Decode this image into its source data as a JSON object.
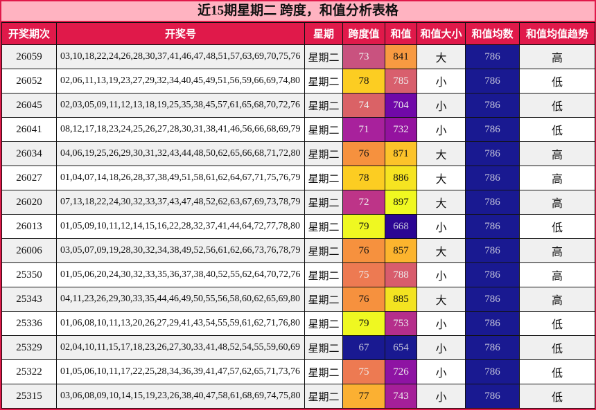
{
  "title": "近15期星期二 跨度，和值分析表格",
  "colors": {
    "frame_border": "#e0194a",
    "title_bg": "#ffb3c1",
    "title_fg": "#111111",
    "header_bg": "#e0194a",
    "header_fg": "#ffffff",
    "row_odd_bg": "#f0f0f0",
    "row_even_bg": "#ffffff",
    "avg_bg": "#191991",
    "avg_fg": "#c6c6dc",
    "cell_border": "#111111"
  },
  "table": {
    "headers": [
      "开奖期次",
      "开奖号",
      "星期",
      "跨度值",
      "和值",
      "和值大小",
      "和值均数",
      "和值均值趋势"
    ],
    "header_keys": [
      "period",
      "numbers",
      "weekday",
      "span",
      "sum",
      "size",
      "avg",
      "trend"
    ],
    "avg_bg": "#191991",
    "avg_fg": "#c6c6dc",
    "rows": [
      {
        "period": "26059",
        "numbers": "03,10,18,22,24,26,28,30,37,41,46,47,48,51,57,63,69,70,75,76",
        "weekday": "星期二",
        "span": "73",
        "span_bg": "#c9527f",
        "span_fg": "#eeeeee",
        "sum": "841",
        "sum_bg": "#f89a41",
        "sum_fg": "#111111",
        "size": "大",
        "avg": "786",
        "trend": "高"
      },
      {
        "period": "26052",
        "numbers": "02,06,11,13,19,23,27,29,32,34,40,45,49,51,56,59,66,69,74,80",
        "weekday": "星期二",
        "span": "78",
        "span_bg": "#fccd22",
        "span_fg": "#111111",
        "sum": "785",
        "sum_bg": "#d85f6d",
        "sum_fg": "#eeeeee",
        "size": "小",
        "avg": "786",
        "trend": "低"
      },
      {
        "period": "26045",
        "numbers": "02,03,05,09,11,12,13,18,19,25,35,38,45,57,61,65,68,70,72,76",
        "weekday": "星期二",
        "span": "74",
        "span_bg": "#da6266",
        "span_fg": "#eeeeee",
        "sum": "704",
        "sum_bg": "#7008a8",
        "sum_fg": "#eeeeee",
        "size": "小",
        "avg": "786",
        "trend": "低"
      },
      {
        "period": "26041",
        "numbers": "08,12,17,18,23,24,25,26,27,28,30,31,38,41,46,56,66,68,69,79",
        "weekday": "星期二",
        "span": "71",
        "span_bg": "#a8219c",
        "span_fg": "#eeeeee",
        "sum": "732",
        "sum_bg": "#94129f",
        "sum_fg": "#eeeeee",
        "size": "小",
        "avg": "786",
        "trend": "低"
      },
      {
        "period": "26034",
        "numbers": "04,06,19,25,26,29,30,31,32,43,44,48,50,62,65,66,68,71,72,80",
        "weekday": "星期二",
        "span": "76",
        "span_bg": "#f6913e",
        "span_fg": "#111111",
        "sum": "871",
        "sum_bg": "#fcc32a",
        "sum_fg": "#111111",
        "size": "大",
        "avg": "786",
        "trend": "高"
      },
      {
        "period": "26027",
        "numbers": "01,04,07,14,18,26,28,37,38,49,51,58,61,62,64,67,71,75,76,79",
        "weekday": "星期二",
        "span": "78",
        "span_bg": "#fccd22",
        "span_fg": "#111111",
        "sum": "886",
        "sum_bg": "#f6e421",
        "sum_fg": "#111111",
        "size": "大",
        "avg": "786",
        "trend": "高"
      },
      {
        "period": "26020",
        "numbers": "07,13,18,22,24,30,32,33,37,43,47,48,52,62,63,67,69,73,78,79",
        "weekday": "星期二",
        "span": "72",
        "span_bg": "#bd3488",
        "span_fg": "#eeeeee",
        "sum": "897",
        "sum_bg": "#f0f821",
        "sum_fg": "#111111",
        "size": "大",
        "avg": "786",
        "trend": "高"
      },
      {
        "period": "26013",
        "numbers": "01,05,09,10,11,12,14,15,16,22,28,32,37,41,44,64,72,77,78,80",
        "weekday": "星期二",
        "span": "79",
        "span_bg": "#eff821",
        "span_fg": "#111111",
        "sum": "668",
        "sum_bg": "#2b0593",
        "sum_fg": "#c6c6dc",
        "size": "小",
        "avg": "786",
        "trend": "低"
      },
      {
        "period": "26006",
        "numbers": "03,05,07,09,19,28,30,32,34,38,49,52,56,61,62,66,73,76,78,79",
        "weekday": "星期二",
        "span": "76",
        "span_bg": "#f6913e",
        "span_fg": "#111111",
        "sum": "857",
        "sum_bg": "#fcb42e",
        "sum_fg": "#111111",
        "size": "大",
        "avg": "786",
        "trend": "高"
      },
      {
        "period": "25350",
        "numbers": "01,05,06,20,24,30,32,33,35,36,37,38,40,52,55,62,64,70,72,76",
        "weekday": "星期二",
        "span": "75",
        "span_bg": "#ed7a52",
        "span_fg": "#eeeeee",
        "sum": "788",
        "sum_bg": "#d85c6c",
        "sum_fg": "#eeeeee",
        "size": "小",
        "avg": "786",
        "trend": "高"
      },
      {
        "period": "25343",
        "numbers": "04,11,23,26,29,30,33,35,44,46,49,50,55,56,58,60,62,65,69,80",
        "weekday": "星期二",
        "span": "76",
        "span_bg": "#f6913e",
        "span_fg": "#111111",
        "sum": "885",
        "sum_bg": "#f3e321",
        "sum_fg": "#111111",
        "size": "大",
        "avg": "786",
        "trend": "高"
      },
      {
        "period": "25336",
        "numbers": "01,06,08,10,11,13,20,26,27,29,41,43,54,55,59,61,62,71,76,80",
        "weekday": "星期二",
        "span": "79",
        "span_bg": "#eff821",
        "span_fg": "#111111",
        "sum": "753",
        "sum_bg": "#b52e8b",
        "sum_fg": "#eeeeee",
        "size": "小",
        "avg": "786",
        "trend": "低"
      },
      {
        "period": "25329",
        "numbers": "02,04,10,11,15,17,18,23,26,27,30,33,41,48,52,54,55,59,60,69",
        "weekday": "星期二",
        "span": "67",
        "span_bg": "#191991",
        "span_fg": "#c6c6dc",
        "sum": "654",
        "sum_bg": "#191991",
        "sum_fg": "#c6c6dc",
        "size": "小",
        "avg": "786",
        "trend": "低"
      },
      {
        "period": "25322",
        "numbers": "01,05,06,10,11,17,22,25,28,34,36,39,41,47,57,62,65,71,73,76",
        "weekday": "星期二",
        "span": "75",
        "span_bg": "#ed7a52",
        "span_fg": "#eeeeee",
        "sum": "726",
        "sum_bg": "#8e13a3",
        "sum_fg": "#eeeeee",
        "size": "小",
        "avg": "786",
        "trend": "低"
      },
      {
        "period": "25315",
        "numbers": "03,06,08,09,10,14,15,19,23,26,38,40,47,58,61,68,69,74,75,80",
        "weekday": "星期二",
        "span": "77",
        "span_bg": "#fbb032",
        "span_fg": "#111111",
        "sum": "743",
        "sum_bg": "#a51f99",
        "sum_fg": "#eeeeee",
        "size": "小",
        "avg": "786",
        "trend": "低"
      }
    ]
  },
  "chart_data": {
    "type": "table",
    "title": "近15期星期二 跨度，和值分析表格",
    "columns": [
      "开奖期次",
      "开奖号",
      "星期",
      "跨度值",
      "和值",
      "和值大小",
      "和值均数",
      "和值均值趋势"
    ],
    "periods": [
      "26059",
      "26052",
      "26045",
      "26041",
      "26034",
      "26027",
      "26020",
      "26013",
      "26006",
      "25350",
      "25343",
      "25336",
      "25329",
      "25322",
      "25315"
    ],
    "weekday": "星期二",
    "span_values": [
      73,
      78,
      74,
      71,
      76,
      78,
      72,
      79,
      76,
      75,
      76,
      79,
      67,
      75,
      77
    ],
    "sum_values": [
      841,
      785,
      704,
      732,
      871,
      886,
      897,
      668,
      857,
      788,
      885,
      753,
      654,
      726,
      743
    ],
    "sum_size": [
      "大",
      "小",
      "小",
      "小",
      "大",
      "大",
      "大",
      "小",
      "大",
      "小",
      "大",
      "小",
      "小",
      "小",
      "小"
    ],
    "sum_mean": [
      786,
      786,
      786,
      786,
      786,
      786,
      786,
      786,
      786,
      786,
      786,
      786,
      786,
      786,
      786
    ],
    "sum_mean_trend": [
      "高",
      "低",
      "低",
      "低",
      "高",
      "高",
      "高",
      "低",
      "高",
      "高",
      "高",
      "低",
      "低",
      "低",
      "低"
    ],
    "layout_hints": {
      "heatmap_columns": [
        "跨度值",
        "和值",
        "和值均数"
      ],
      "colormap": "plasma-like (low=navy, mid=magenta, high=yellow)",
      "row_striping": true
    }
  }
}
